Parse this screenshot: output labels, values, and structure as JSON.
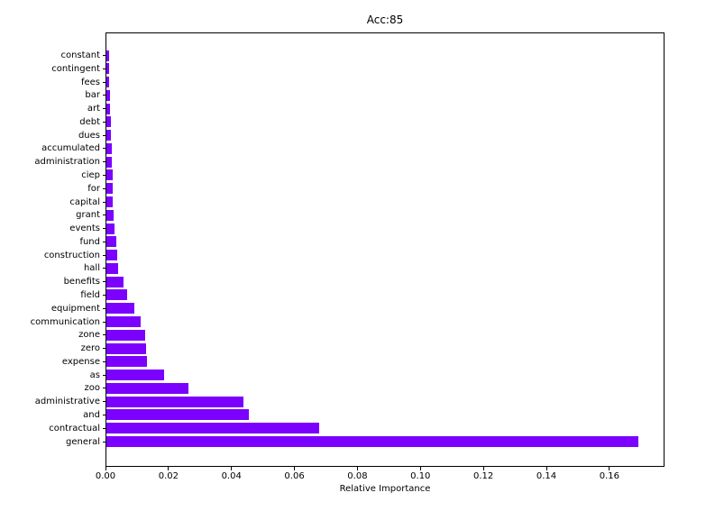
{
  "chart_data": {
    "type": "bar",
    "orientation": "horizontal",
    "title": "Acc:85",
    "xlabel": "Relative Importance",
    "ylabel": "",
    "grid": false,
    "legend": null,
    "bar_color": "#7b00fe",
    "axis_color": "#000000",
    "background_color": "#ffffff",
    "xlim": [
      0,
      0.1775
    ],
    "xticks": [
      0.0,
      0.02,
      0.04,
      0.06,
      0.08,
      0.1,
      0.12,
      0.14,
      0.16
    ],
    "xtick_labels": [
      "0.00",
      "0.02",
      "0.04",
      "0.06",
      "0.08",
      "0.10",
      "0.12",
      "0.14",
      "0.16"
    ],
    "categories_top_to_bottom": [
      "constant",
      "contingent",
      "fees",
      "bar",
      "art",
      "debt",
      "dues",
      "accumulated",
      "administration",
      "ciep",
      "for",
      "capital",
      "grant",
      "events",
      "fund",
      "construction",
      "hall",
      "benefits",
      "field",
      "equipment",
      "communication",
      "zone",
      "zero",
      "expense",
      "as",
      "zoo",
      "administrative",
      "and",
      "contractual",
      "general"
    ],
    "values_top_to_bottom": [
      0.0008,
      0.0009,
      0.001,
      0.0011,
      0.0012,
      0.0013,
      0.0015,
      0.0016,
      0.0017,
      0.0019,
      0.002,
      0.0021,
      0.0023,
      0.0027,
      0.0031,
      0.0035,
      0.0037,
      0.0053,
      0.0066,
      0.009,
      0.0108,
      0.0122,
      0.0125,
      0.0129,
      0.0182,
      0.026,
      0.0435,
      0.0452,
      0.0676,
      0.169
    ]
  }
}
